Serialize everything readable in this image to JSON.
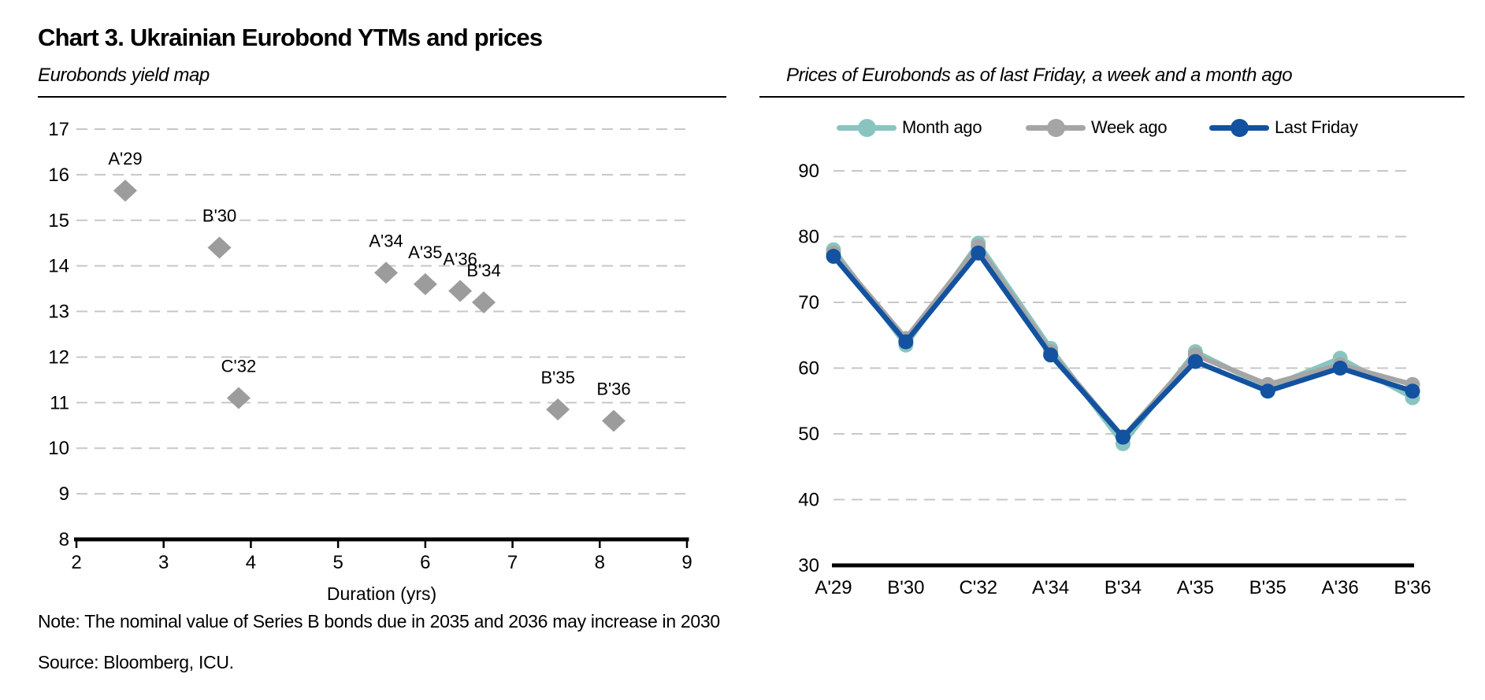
{
  "header": {
    "title": "Chart 3. Ukrainian Eurobond YTMs and prices"
  },
  "left_panel": {
    "subtitle": "Eurobonds yield map"
  },
  "right_panel": {
    "subtitle": "Prices of Eurobonds as of last Friday, a week and a month ago"
  },
  "footer": {
    "note": "Note: The nominal value of Series B bonds due in 2035 and 2036 may increase in 2030",
    "source": "Source: Bloomberg, ICU."
  },
  "colors": {
    "month_ago": "#8AC4C0",
    "week_ago": "#A5A5A5",
    "last_friday": "#1252A0",
    "diamond": "#9C9C9C",
    "gridline": "#C7C7C7",
    "axis": "#000000",
    "text": "#000000"
  },
  "chart_data": [
    {
      "type": "scatter",
      "title": "Eurobonds yield map",
      "xlabel": "Duration (yrs)",
      "ylabel": "",
      "xlim": [
        2,
        9
      ],
      "ylim": [
        8,
        17
      ],
      "xticks": [
        2,
        3,
        4,
        5,
        6,
        7,
        8,
        9
      ],
      "yticks": [
        8,
        9,
        10,
        11,
        12,
        13,
        14,
        15,
        16,
        17
      ],
      "grid": "horizontal-dashed",
      "marker": "diamond",
      "marker_color": "#9C9C9C",
      "points": [
        {
          "label": "A'29",
          "x": 2.56,
          "y": 15.65
        },
        {
          "label": "B'30",
          "x": 3.64,
          "y": 14.4
        },
        {
          "label": "C'32",
          "x": 3.86,
          "y": 11.1
        },
        {
          "label": "A'34",
          "x": 5.55,
          "y": 13.85
        },
        {
          "label": "A'35",
          "x": 6.0,
          "y": 13.6
        },
        {
          "label": "A'36",
          "x": 6.4,
          "y": 13.45
        },
        {
          "label": "B'34",
          "x": 6.67,
          "y": 13.2
        },
        {
          "label": "B'35",
          "x": 7.52,
          "y": 10.85
        },
        {
          "label": "B'36",
          "x": 8.16,
          "y": 10.6
        }
      ]
    },
    {
      "type": "line",
      "title": "Prices of Eurobonds as of last Friday, a week and a month ago",
      "categories": [
        "A'29",
        "B'30",
        "C'32",
        "A'34",
        "B'34",
        "A'35",
        "B'35",
        "A'36",
        "B'36"
      ],
      "ylim": [
        30,
        90
      ],
      "yticks": [
        30,
        40,
        50,
        60,
        70,
        80,
        90
      ],
      "grid": "horizontal-dashed",
      "legend_position": "top",
      "series": [
        {
          "name": "Month ago",
          "color": "#8AC4C0",
          "values": [
            78,
            63.5,
            79,
            63,
            48.5,
            62.5,
            57,
            61.5,
            55.5
          ]
        },
        {
          "name": "Week ago",
          "color": "#A5A5A5",
          "values": [
            77.5,
            64.5,
            78.5,
            62.5,
            49.5,
            62,
            57.5,
            60.5,
            57.5
          ]
        },
        {
          "name": "Last Friday",
          "color": "#1252A0",
          "values": [
            77,
            64,
            77.5,
            62,
            49.5,
            61,
            56.5,
            60,
            56.5
          ]
        }
      ]
    }
  ]
}
